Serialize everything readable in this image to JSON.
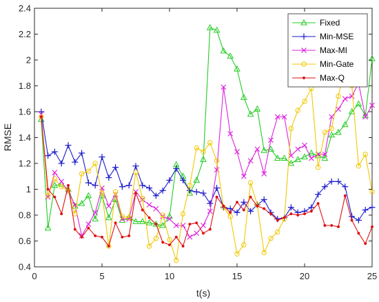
{
  "chart_data": {
    "type": "line",
    "xlabel": "t(s)",
    "ylabel": "RMSE",
    "xlim": [
      0,
      25
    ],
    "ylim": [
      0.4,
      2.4
    ],
    "xticks": [
      0,
      5,
      10,
      15,
      20,
      25
    ],
    "yticks": [
      0.4,
      0.6,
      0.8,
      1.0,
      1.2,
      1.4,
      1.6,
      1.8,
      2.0,
      2.2,
      2.4
    ],
    "x_tick_labels": [
      "0",
      "5",
      "10",
      "15",
      "20",
      "25"
    ],
    "y_tick_labels": [
      "0.4",
      "0.6",
      "0.8",
      "1",
      "1.2",
      "1.4",
      "1.6",
      "1.8",
      "2",
      "2.2",
      "2.4"
    ],
    "grid": false,
    "legend_position": "top-right",
    "x": [
      0.5,
      1,
      1.5,
      2,
      2.5,
      3,
      3.5,
      4,
      4.5,
      5,
      5.5,
      6,
      6.5,
      7,
      7.5,
      8,
      8.5,
      9,
      9.5,
      10,
      10.5,
      11,
      11.5,
      12,
      12.5,
      13,
      13.5,
      14,
      14.5,
      15,
      15.5,
      16,
      16.5,
      17,
      17.5,
      18,
      18.5,
      19,
      19.5,
      20,
      20.5,
      21,
      21.5,
      22,
      22.5,
      23,
      23.5,
      24,
      24.5,
      25
    ],
    "series": [
      {
        "name": "Fixed",
        "color": "#22cc22",
        "marker": "triangle",
        "values": [
          1.54,
          0.7,
          1.03,
          1.04,
          1.0,
          0.87,
          0.89,
          0.95,
          0.77,
          0.95,
          0.78,
          0.92,
          0.76,
          0.78,
          0.75,
          0.75,
          0.74,
          0.73,
          0.72,
          0.79,
          1.19,
          1.1,
          0.97,
          1.07,
          1.23,
          2.25,
          2.23,
          2.07,
          2.03,
          1.93,
          1.71,
          1.58,
          1.62,
          1.3,
          1.31,
          1.24,
          1.24,
          1.2,
          1.23,
          1.25,
          1.28,
          1.26,
          1.24,
          1.42,
          1.44,
          1.5,
          1.6,
          1.66,
          1.57,
          2.01
        ]
      },
      {
        "name": "Min-MSE",
        "color": "#1a1acc",
        "marker": "plus",
        "values": [
          1.6,
          1.26,
          1.29,
          1.2,
          1.34,
          1.21,
          1.28,
          1.05,
          1.03,
          1.25,
          1.09,
          1.17,
          1.02,
          1.03,
          1.18,
          1.03,
          1.01,
          0.95,
          0.99,
          1.07,
          1.16,
          1.07,
          0.99,
          0.98,
          0.97,
          0.89,
          1.01,
          0.86,
          0.85,
          0.82,
          0.9,
          0.83,
          0.88,
          0.92,
          0.82,
          0.77,
          0.78,
          0.86,
          0.82,
          0.83,
          0.86,
          0.96,
          1.02,
          1.06,
          1.06,
          1.02,
          0.79,
          0.76,
          0.84,
          0.86
        ]
      },
      {
        "name": "Max-MI",
        "color": "#dd22dd",
        "marker": "cross",
        "values": [
          1.58,
          0.94,
          1.13,
          1.06,
          0.98,
          0.88,
          0.64,
          0.73,
          0.82,
          1.01,
          0.87,
          0.96,
          0.77,
          0.77,
          0.98,
          0.92,
          0.88,
          0.85,
          0.79,
          0.77,
          0.72,
          0.72,
          0.63,
          0.66,
          0.72,
          0.83,
          1.15,
          1.79,
          1.43,
          1.29,
          1.1,
          1.22,
          1.31,
          1.12,
          1.38,
          1.56,
          1.56,
          1.26,
          1.31,
          1.34,
          1.24,
          1.27,
          1.27,
          1.56,
          1.62,
          1.7,
          1.72,
          1.82,
          1.56,
          1.65
        ]
      },
      {
        "name": "Min-Gate",
        "color": "#f0c800",
        "marker": "circle",
        "values": [
          1.56,
          0.95,
          1.08,
          1.02,
          0.99,
          0.81,
          1.12,
          1.14,
          1.2,
          0.97,
          0.56,
          0.98,
          0.79,
          0.78,
          1.13,
          0.93,
          0.56,
          0.62,
          0.8,
          0.61,
          0.45,
          0.81,
          1.03,
          1.32,
          1.29,
          1.36,
          1.22,
          0.86,
          0.79,
          0.5,
          0.57,
          1.05,
          0.88,
          0.51,
          0.62,
          0.67,
          0.77,
          1.47,
          1.61,
          1.68,
          1.78,
          1.17,
          1.44,
          1.47,
          1.72,
          1.96,
          1.8,
          1.18,
          1.27,
          0.98
        ]
      },
      {
        "name": "Max-Q",
        "color": "#dd1111",
        "marker": "dot",
        "values": [
          1.56,
          1.0,
          0.94,
          0.81,
          1.03,
          0.69,
          0.63,
          0.7,
          0.64,
          0.63,
          0.56,
          0.74,
          0.63,
          0.64,
          0.97,
          0.84,
          0.78,
          0.73,
          0.59,
          0.57,
          0.63,
          0.56,
          0.73,
          0.74,
          0.66,
          0.69,
          0.94,
          0.87,
          0.82,
          0.9,
          0.84,
          0.94,
          0.87,
          0.85,
          0.81,
          0.76,
          0.78,
          0.81,
          0.8,
          0.81,
          0.83,
          0.89,
          0.72,
          0.72,
          0.71,
          0.95,
          0.76,
          0.66,
          0.58,
          0.71
        ]
      }
    ]
  }
}
